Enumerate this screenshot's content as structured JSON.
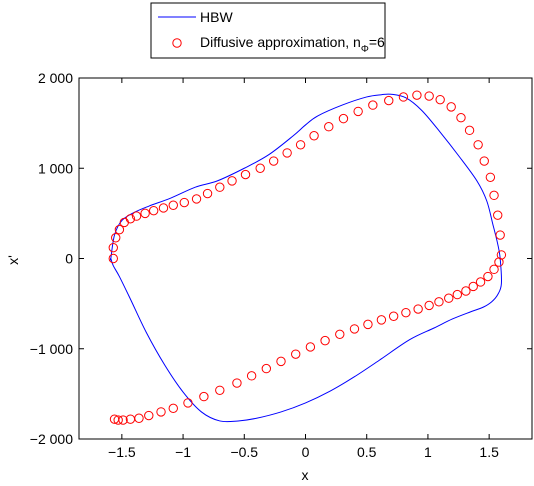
{
  "chart_data": {
    "type": "line",
    "title": "",
    "xlabel": "x",
    "ylabel": "x'",
    "xlim": [
      -1.85,
      1.85
    ],
    "ylim": [
      -2000,
      2000
    ],
    "x_ticks": [
      -1.5,
      -1,
      -0.5,
      0,
      0.5,
      1,
      1.5
    ],
    "x_tick_labels": [
      "−1.5",
      "−1",
      "−0.5",
      "0",
      "0.5",
      "1",
      "1.5"
    ],
    "y_ticks": [
      -2000,
      -1000,
      0,
      1000,
      2000
    ],
    "y_tick_labels": [
      "−2 000",
      "−1 000",
      "0",
      "1 000",
      "2 000"
    ],
    "grid": false,
    "legend_position": "top-center-outside",
    "series": [
      {
        "name": "HBW",
        "style": "line",
        "color": "#0000ff",
        "x": [
          -1.59,
          -1.56,
          -1.5,
          -1.4,
          -1.28,
          -1.1,
          -0.9,
          -0.72,
          -0.5,
          -0.3,
          -0.1,
          0.0,
          0.1,
          0.3,
          0.5,
          0.62,
          0.7,
          0.82,
          0.95,
          1.1,
          1.25,
          1.4,
          1.48,
          1.53,
          1.57,
          1.59,
          1.6,
          1.57,
          1.52,
          1.45,
          1.35,
          1.2,
          1.05,
          0.85,
          0.6,
          0.4,
          0.2,
          0.0,
          -0.2,
          -0.4,
          -0.55,
          -0.7,
          -0.85,
          -1.0,
          -1.15,
          -1.3,
          -1.43,
          -1.52,
          -1.57,
          -1.59
        ],
        "y": [
          0,
          260,
          420,
          510,
          580,
          670,
          790,
          860,
          1000,
          1150,
          1360,
          1480,
          1580,
          1700,
          1790,
          1815,
          1820,
          1780,
          1640,
          1400,
          1140,
          860,
          640,
          380,
          160,
          0,
          -280,
          -400,
          -480,
          -540,
          -590,
          -670,
          -770,
          -900,
          -1130,
          -1310,
          -1470,
          -1600,
          -1700,
          -1770,
          -1800,
          -1800,
          -1700,
          -1480,
          -1180,
          -820,
          -450,
          -200,
          -80,
          0
        ]
      },
      {
        "name": "Diffusive approximation, n_Φ=6",
        "style": "marker",
        "color": "#ff0000",
        "x": [
          -1.57,
          -1.57,
          -1.55,
          -1.52,
          -1.48,
          -1.43,
          -1.38,
          -1.31,
          -1.24,
          -1.16,
          -1.08,
          -0.99,
          -0.89,
          -0.8,
          -0.7,
          -0.6,
          -0.49,
          -0.37,
          -0.26,
          -0.15,
          -0.04,
          0.07,
          0.19,
          0.31,
          0.43,
          0.55,
          0.68,
          0.8,
          0.91,
          1.01,
          1.1,
          1.19,
          1.27,
          1.34,
          1.41,
          1.46,
          1.51,
          1.54,
          1.57,
          1.59,
          1.6,
          1.58,
          1.54,
          1.49,
          1.43,
          1.37,
          1.31,
          1.24,
          1.17,
          1.09,
          1.01,
          0.92,
          0.82,
          0.72,
          0.62,
          0.51,
          0.4,
          0.28,
          0.16,
          0.04,
          -0.08,
          -0.2,
          -0.32,
          -0.44,
          -0.56,
          -0.7,
          -0.83,
          -0.96,
          -1.08,
          -1.18,
          -1.28,
          -1.36,
          -1.43,
          -1.49,
          -1.53,
          -1.56
        ],
        "y": [
          0,
          120,
          230,
          320,
          400,
          440,
          470,
          500,
          530,
          560,
          590,
          620,
          660,
          720,
          790,
          860,
          930,
          1000,
          1080,
          1170,
          1260,
          1360,
          1460,
          1550,
          1630,
          1700,
          1750,
          1790,
          1810,
          1800,
          1760,
          1680,
          1560,
          1420,
          1260,
          1080,
          900,
          700,
          480,
          260,
          40,
          -40,
          -120,
          -200,
          -260,
          -310,
          -360,
          -400,
          -440,
          -480,
          -520,
          -560,
          -600,
          -640,
          -680,
          -730,
          -780,
          -840,
          -910,
          -980,
          -1060,
          -1140,
          -1220,
          -1300,
          -1380,
          -1460,
          -1530,
          -1600,
          -1660,
          -1700,
          -1740,
          -1770,
          -1780,
          -1790,
          -1790,
          -1780
        ]
      }
    ]
  }
}
